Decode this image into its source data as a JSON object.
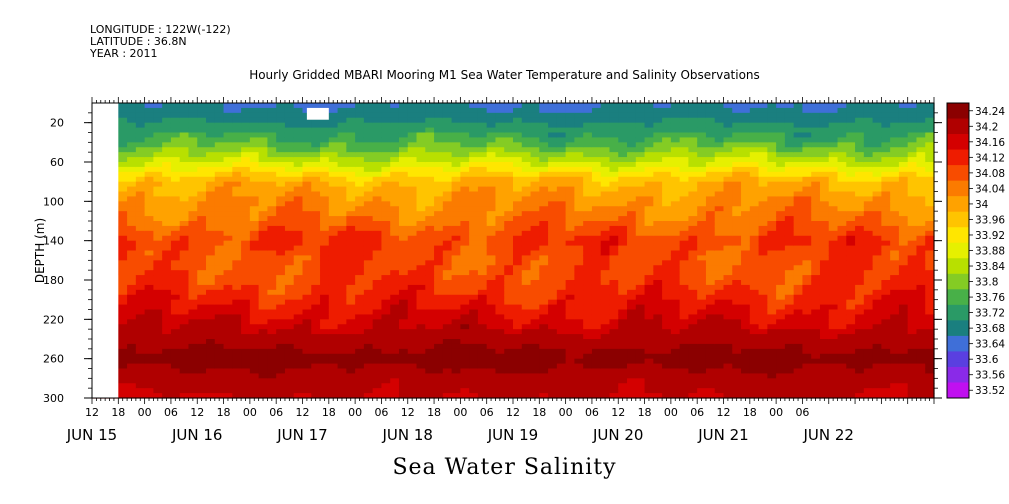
{
  "header": {
    "longitude": "LONGITUDE : 122W(-122)",
    "latitude": "LATITUDE : 36.8N",
    "year": "YEAR : 2011"
  },
  "chart_data": {
    "type": "heatmap",
    "title": "Hourly Gridded MBARI Mooring M1 Sea Water Temperature and Salinity Observations",
    "footer": "Sea Water Salinity",
    "ylabel": "DEPTH (m)",
    "y_range": [
      300,
      0
    ],
    "y_ticks": [
      20,
      60,
      100,
      140,
      180,
      220,
      260,
      300
    ],
    "x_range_hours": [
      0,
      192
    ],
    "x_tick_labels": [
      "12",
      "18",
      "00",
      "06",
      "12",
      "18",
      "00",
      "06",
      "12",
      "18",
      "00",
      "06",
      "12",
      "18",
      "00",
      "06",
      "12",
      "18",
      "00",
      "06",
      "12",
      "18",
      "00",
      "06",
      "12",
      "18",
      "00",
      "06"
    ],
    "x_date_labels": [
      "JUN 15",
      "JUN 16",
      "JUN 17",
      "JUN 18",
      "JUN 19",
      "JUN 20",
      "JUN 21",
      "JUN 22"
    ],
    "colorbar_levels": [
      "34.24",
      "34.2",
      "34.16",
      "34.12",
      "34.08",
      "34.04",
      "34",
      "33.96",
      "33.92",
      "33.88",
      "33.84",
      "33.8",
      "33.76",
      "33.72",
      "33.68",
      "33.64",
      "33.6",
      "33.56",
      "33.52"
    ],
    "colorbar_colors": [
      "#8b0000",
      "#b00000",
      "#d40000",
      "#ee1c00",
      "#f84c00",
      "#fb7b00",
      "#ffa200",
      "#ffc400",
      "#ffe600",
      "#e6f000",
      "#b8e000",
      "#84cc24",
      "#48b048",
      "#2a9a66",
      "#1a7f7f",
      "#3f6fd8",
      "#5a3fe0",
      "#8a2ae8",
      "#c010f0"
    ],
    "depth_profile": {
      "depths": [
        5,
        20,
        40,
        60,
        80,
        100,
        120,
        140,
        160,
        180,
        200,
        220,
        240,
        250,
        260,
        280,
        300
      ],
      "salinity": [
        33.66,
        33.7,
        33.76,
        33.86,
        33.98,
        34.02,
        34.05,
        34.1,
        34.08,
        34.09,
        34.12,
        34.16,
        34.2,
        34.22,
        34.24,
        34.2,
        34.18
      ]
    },
    "no_data": [
      {
        "x_hours": [
          0,
          6
        ],
        "depth": [
          0,
          300
        ]
      },
      {
        "x_hours": [
          49,
          54
        ],
        "depth": [
          5,
          17
        ]
      }
    ]
  }
}
